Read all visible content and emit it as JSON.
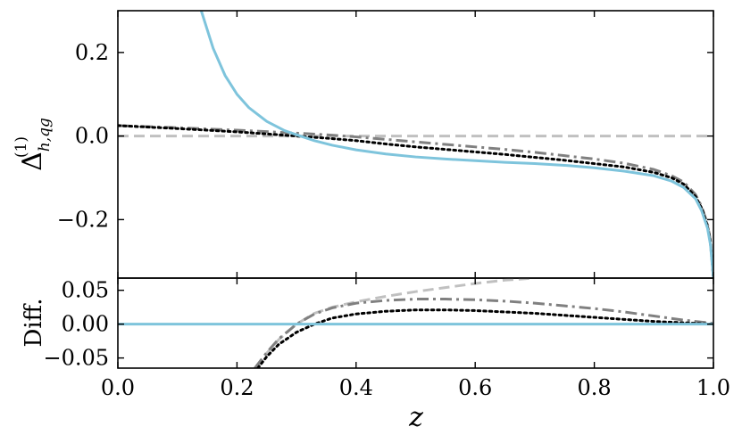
{
  "chart_data": [
    {
      "type": "line",
      "panel": "main",
      "ylabel": "Δ_{h,qg}^{(1)}",
      "ylabel_main": "Δ",
      "ylabel_sup": "(1)",
      "ylabel_sub": "h,qg",
      "xlim": [
        0.0,
        1.0
      ],
      "ylim": [
        -0.34,
        0.3
      ],
      "yticks": [
        0.2,
        0.0,
        -0.2
      ],
      "ytick_labels": [
        "0.2",
        "0.0",
        "−0.2"
      ],
      "series": [
        {
          "color": "#7ec4dc",
          "style": "solid",
          "x": [
            0.14,
            0.16,
            0.18,
            0.2,
            0.22,
            0.25,
            0.28,
            0.3,
            0.33,
            0.36,
            0.4,
            0.45,
            0.5,
            0.55,
            0.6,
            0.65,
            0.7,
            0.75,
            0.8,
            0.85,
            0.9,
            0.93,
            0.95,
            0.97,
            0.98,
            0.99,
            0.995,
            1.0
          ],
          "y": [
            0.3,
            0.21,
            0.145,
            0.1,
            0.068,
            0.035,
            0.013,
            0.003,
            -0.011,
            -0.022,
            -0.033,
            -0.043,
            -0.05,
            -0.055,
            -0.059,
            -0.063,
            -0.066,
            -0.07,
            -0.076,
            -0.084,
            -0.095,
            -0.108,
            -0.123,
            -0.15,
            -0.178,
            -0.22,
            -0.26,
            -0.34
          ]
        },
        {
          "color": "#000000",
          "style": "dotted",
          "x": [
            0.0,
            0.1,
            0.2,
            0.3,
            0.35,
            0.4,
            0.45,
            0.5,
            0.55,
            0.6,
            0.65,
            0.7,
            0.75,
            0.8,
            0.85,
            0.9,
            0.93,
            0.95,
            0.97,
            0.98,
            0.99,
            0.995,
            1.0
          ],
          "y": [
            0.025,
            0.018,
            0.01,
            0.0,
            -0.005,
            -0.011,
            -0.019,
            -0.026,
            -0.032,
            -0.038,
            -0.044,
            -0.051,
            -0.058,
            -0.066,
            -0.074,
            -0.087,
            -0.1,
            -0.115,
            -0.145,
            -0.172,
            -0.215,
            -0.255,
            -0.34
          ]
        },
        {
          "color": "#808080",
          "style": "dashdot",
          "x": [
            0.0,
            0.1,
            0.2,
            0.3,
            0.35,
            0.4,
            0.45,
            0.5,
            0.55,
            0.6,
            0.65,
            0.7,
            0.75,
            0.8,
            0.85,
            0.9,
            0.93,
            0.95,
            0.97,
            0.98,
            0.99,
            0.995,
            1.0
          ],
          "y": [
            0.025,
            0.02,
            0.014,
            0.007,
            0.003,
            -0.002,
            -0.008,
            -0.014,
            -0.02,
            -0.026,
            -0.032,
            -0.039,
            -0.047,
            -0.055,
            -0.065,
            -0.08,
            -0.095,
            -0.11,
            -0.14,
            -0.168,
            -0.21,
            -0.25,
            -0.34
          ]
        },
        {
          "color": "#c0c0c0",
          "style": "dashed",
          "x": [
            0.0,
            1.0
          ],
          "y": [
            0.0,
            0.0
          ]
        }
      ]
    },
    {
      "type": "line",
      "panel": "ratio",
      "ylabel": "Diff.",
      "xlabel": "z",
      "xlim": [
        0.0,
        1.0
      ],
      "ylim": [
        -0.065,
        0.068
      ],
      "xticks": [
        0.0,
        0.2,
        0.4,
        0.6,
        0.8,
        1.0
      ],
      "xtick_labels": [
        "0.0",
        "0.2",
        "0.4",
        "0.6",
        "0.8",
        "1.0"
      ],
      "yticks": [
        0.05,
        0.0,
        -0.05
      ],
      "ytick_labels": [
        "0.05",
        "0.00",
        "−0.05"
      ],
      "series": [
        {
          "color": "#7ec4dc",
          "style": "solid",
          "x": [
            0.0,
            1.0
          ],
          "y": [
            0.0,
            0.0
          ]
        },
        {
          "color": "#000000",
          "style": "dotted",
          "x": [
            0.235,
            0.25,
            0.27,
            0.3,
            0.33,
            0.36,
            0.4,
            0.45,
            0.5,
            0.55,
            0.6,
            0.65,
            0.7,
            0.75,
            0.8,
            0.85,
            0.9,
            0.95,
            1.0
          ],
          "y": [
            -0.065,
            -0.048,
            -0.03,
            -0.012,
            0.0,
            0.009,
            0.015,
            0.019,
            0.021,
            0.021,
            0.02,
            0.018,
            0.016,
            0.013,
            0.01,
            0.007,
            0.004,
            0.002,
            0.0
          ]
        },
        {
          "color": "#808080",
          "style": "dashdot",
          "x": [
            0.23,
            0.25,
            0.27,
            0.3,
            0.33,
            0.36,
            0.4,
            0.45,
            0.5,
            0.55,
            0.6,
            0.65,
            0.7,
            0.75,
            0.8,
            0.85,
            0.9,
            0.95,
            1.0
          ],
          "y": [
            -0.065,
            -0.042,
            -0.022,
            0.0,
            0.015,
            0.024,
            0.031,
            0.035,
            0.037,
            0.037,
            0.036,
            0.034,
            0.031,
            0.027,
            0.023,
            0.018,
            0.012,
            0.006,
            0.001
          ]
        },
        {
          "color": "#c0c0c0",
          "style": "dashed",
          "x": [
            0.23,
            0.25,
            0.27,
            0.3,
            0.33,
            0.36,
            0.4,
            0.45,
            0.5,
            0.55,
            0.6,
            0.65,
            0.7
          ],
          "y": [
            -0.065,
            -0.043,
            -0.023,
            0.0,
            0.016,
            0.025,
            0.033,
            0.041,
            0.048,
            0.054,
            0.06,
            0.065,
            0.068
          ]
        }
      ]
    }
  ]
}
